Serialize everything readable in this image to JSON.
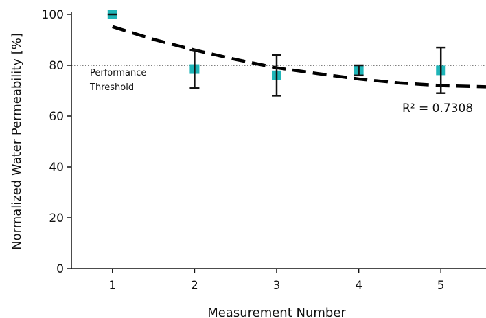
{
  "chart_data": {
    "type": "scatter",
    "title": "",
    "xlabel": "Measurement Number",
    "ylabel": "Normalized Water Permeability [%]",
    "xlim": [
      0.5,
      5.55
    ],
    "ylim": [
      0,
      100
    ],
    "x_ticks": [
      1,
      2,
      3,
      4,
      5
    ],
    "y_ticks": [
      0,
      20,
      40,
      60,
      80,
      100
    ],
    "grid": false,
    "series": [
      {
        "x": [
          1,
          2,
          3,
          4,
          5
        ],
        "y": [
          100,
          78.5,
          76,
          78,
          78
        ],
        "error_low": [
          100,
          71,
          68,
          76,
          69
        ],
        "error_high": [
          100,
          86,
          84,
          80,
          87
        ],
        "color": "#1fb5b8"
      }
    ],
    "fit": {
      "style": "dashed",
      "color": "#000000",
      "x": [
        1,
        1.5,
        2,
        2.5,
        3,
        3.5,
        4,
        4.5,
        5,
        5.55
      ],
      "y": [
        95.2,
        90.2,
        86.0,
        82.3,
        79.0,
        76.7,
        74.6,
        73.0,
        72.0,
        71.5
      ],
      "r2_label": "R² = 0.7308"
    },
    "threshold": {
      "value": 80,
      "label_line1": "Performance",
      "label_line2": "Threshold",
      "style": "dotted"
    }
  }
}
